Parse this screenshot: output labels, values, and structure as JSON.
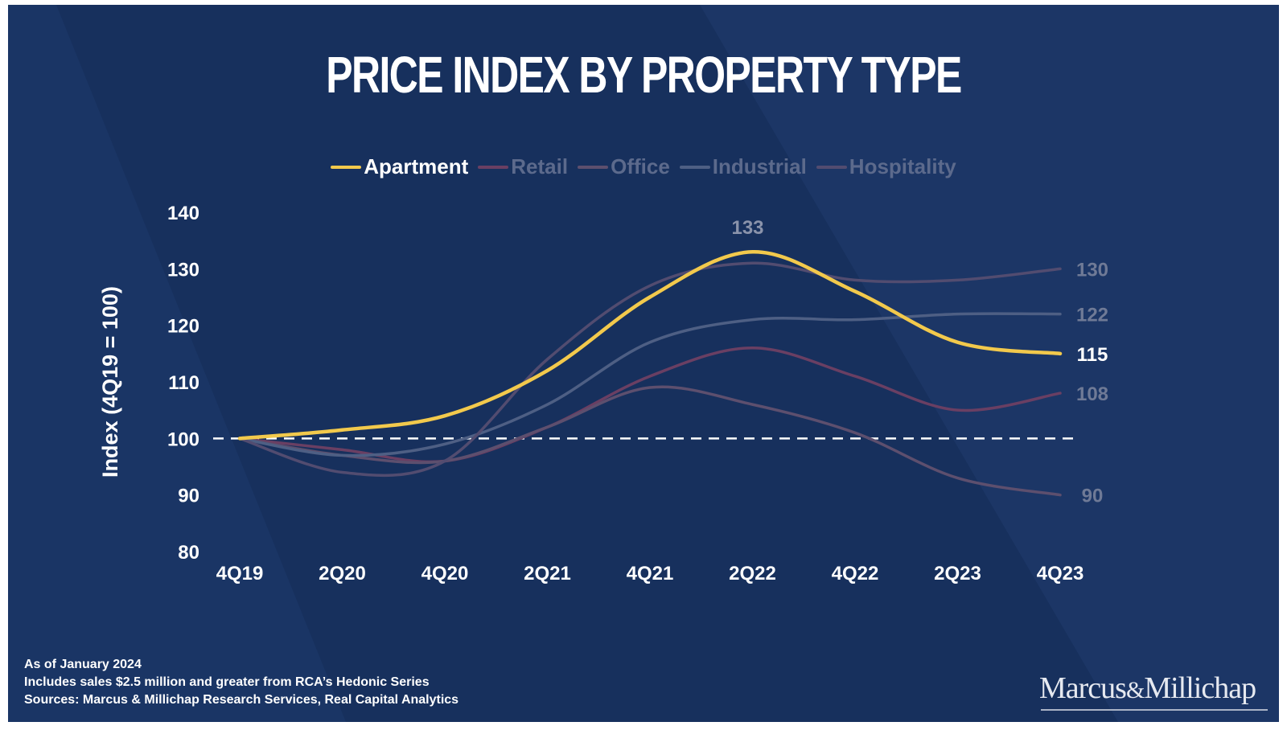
{
  "title": "PRICE INDEX BY PROPERTY TYPE",
  "footnote": {
    "line1": "As of January 2024",
    "line2": "Includes sales  $2.5 million and greater from RCA’s Hedonic Series",
    "line3": "Sources: Marcus & Millichap Research Services, Real Capital Analytics"
  },
  "brand": {
    "part1": "Marcus",
    "amp": "&",
    "part2": "Millichap"
  },
  "colors": {
    "background": "#17305d",
    "apartment": "#f2c94c",
    "retail": "#6a3f63",
    "office": "#5d4f6e",
    "industrial": "#4e5f84",
    "hospitality": "#524c70",
    "baseline": "#ffffff"
  },
  "chart_data": {
    "type": "line",
    "title": "PRICE INDEX BY PROPERTY TYPE",
    "xlabel": "",
    "ylabel": "Index (4Q19 = 100)",
    "ylim": [
      80,
      140
    ],
    "yticks": [
      80,
      90,
      100,
      110,
      120,
      130,
      140
    ],
    "x": [
      "4Q19",
      "2Q20",
      "4Q20",
      "2Q21",
      "4Q21",
      "2Q22",
      "4Q22",
      "2Q23",
      "4Q23"
    ],
    "reference_line": 100,
    "legend_position": "top-center",
    "grid": false,
    "peak_label": {
      "series": "Apartment",
      "x": "2Q22",
      "value": 133
    },
    "series": [
      {
        "name": "Apartment",
        "values": [
          100,
          101.5,
          104,
          112,
          125,
          133,
          126,
          117,
          115
        ],
        "end_label": "115",
        "highlight": true
      },
      {
        "name": "Retail",
        "values": [
          100,
          98,
          96,
          102,
          111,
          116,
          111,
          105,
          108
        ],
        "end_label": "108"
      },
      {
        "name": "Office",
        "values": [
          100,
          97,
          96,
          102,
          109,
          106,
          101,
          93,
          90
        ],
        "end_label": "90"
      },
      {
        "name": "Industrial",
        "values": [
          100,
          97,
          99,
          106,
          117,
          121,
          121,
          122,
          122
        ],
        "end_label": "122"
      },
      {
        "name": "Hospitality",
        "values": [
          100,
          94,
          96,
          114,
          127,
          131,
          128,
          128,
          130
        ],
        "end_label": "130"
      }
    ]
  }
}
